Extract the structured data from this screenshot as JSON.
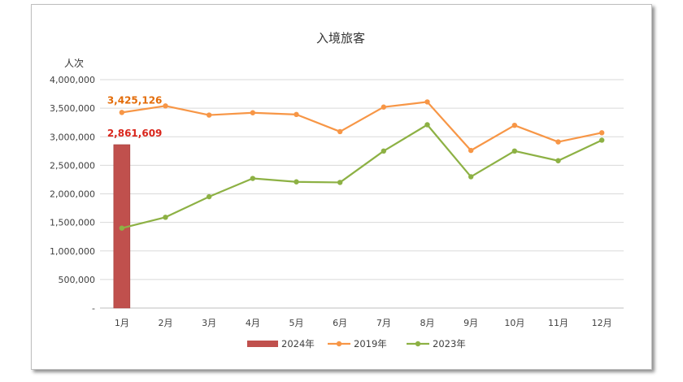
{
  "chart_data": {
    "type": "bar+line",
    "title": "入境旅客",
    "ylabel": "人次",
    "ylim": [
      0,
      4000000
    ],
    "yticks": [
      0,
      500000,
      1000000,
      1500000,
      2000000,
      2500000,
      3000000,
      3500000,
      4000000
    ],
    "ytick_labels": [
      "-",
      "500,000",
      "1,000,000",
      "1,500,000",
      "2,000,000",
      "2,500,000",
      "3,000,000",
      "3,500,000",
      "4,000,000"
    ],
    "categories": [
      "1月",
      "2月",
      "3月",
      "4月",
      "5月",
      "6月",
      "7月",
      "8月",
      "9月",
      "10月",
      "11月",
      "12月"
    ],
    "grid": true,
    "legend_position": "bottom",
    "series": [
      {
        "name": "2024年",
        "type": "bar",
        "color": "#c0504d",
        "values": [
          2861609,
          null,
          null,
          null,
          null,
          null,
          null,
          null,
          null,
          null,
          null,
          null
        ],
        "label": "2,861,609"
      },
      {
        "name": "2019年",
        "type": "line",
        "color": "#f79646",
        "values": [
          3425126,
          3540000,
          3380000,
          3420000,
          3390000,
          3090000,
          3520000,
          3610000,
          2760000,
          3200000,
          2910000,
          3070000
        ],
        "label": "3,425,126"
      },
      {
        "name": "2023年",
        "type": "line",
        "color": "#8db144",
        "values": [
          1400000,
          1590000,
          1950000,
          2270000,
          2210000,
          2200000,
          2750000,
          3210000,
          2300000,
          2750000,
          2580000,
          2940000
        ]
      }
    ]
  }
}
